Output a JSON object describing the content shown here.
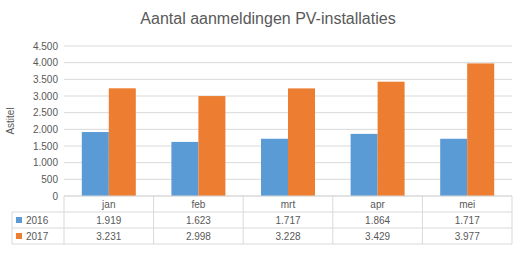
{
  "chart_data": {
    "type": "bar",
    "title": "Aantal aanmeldingen PV-installaties",
    "y_label": "Astitel",
    "categories": [
      "jan",
      "feb",
      "mrt",
      "apr",
      "mei"
    ],
    "series": [
      {
        "name": "2016",
        "color": "#5b9bd5",
        "values": [
          1919,
          1623,
          1717,
          1864,
          1717
        ],
        "value_labels": [
          "1.919",
          "1.623",
          "1.717",
          "1.864",
          "1.717"
        ]
      },
      {
        "name": "2017",
        "color": "#ed7d31",
        "values": [
          3231,
          2998,
          3228,
          3429,
          3977
        ],
        "value_labels": [
          "3.231",
          "2.998",
          "3.228",
          "3.429",
          "3.977"
        ]
      }
    ],
    "ylim": [
      0,
      4500
    ],
    "yticks": [
      0,
      500,
      {
        "value": 1000,
        "label": "1.000"
      },
      {
        "value": 1500,
        "label": "1.500"
      },
      {
        "value": 2000,
        "label": "2.000"
      },
      {
        "value": 2500,
        "label": "2.500"
      },
      {
        "value": 3000,
        "label": "3.000"
      },
      {
        "value": 3500,
        "label": "3.500"
      },
      {
        "value": 4000,
        "label": "4.000"
      },
      {
        "value": 4500,
        "label": "4.500"
      }
    ],
    "grid": true
  }
}
